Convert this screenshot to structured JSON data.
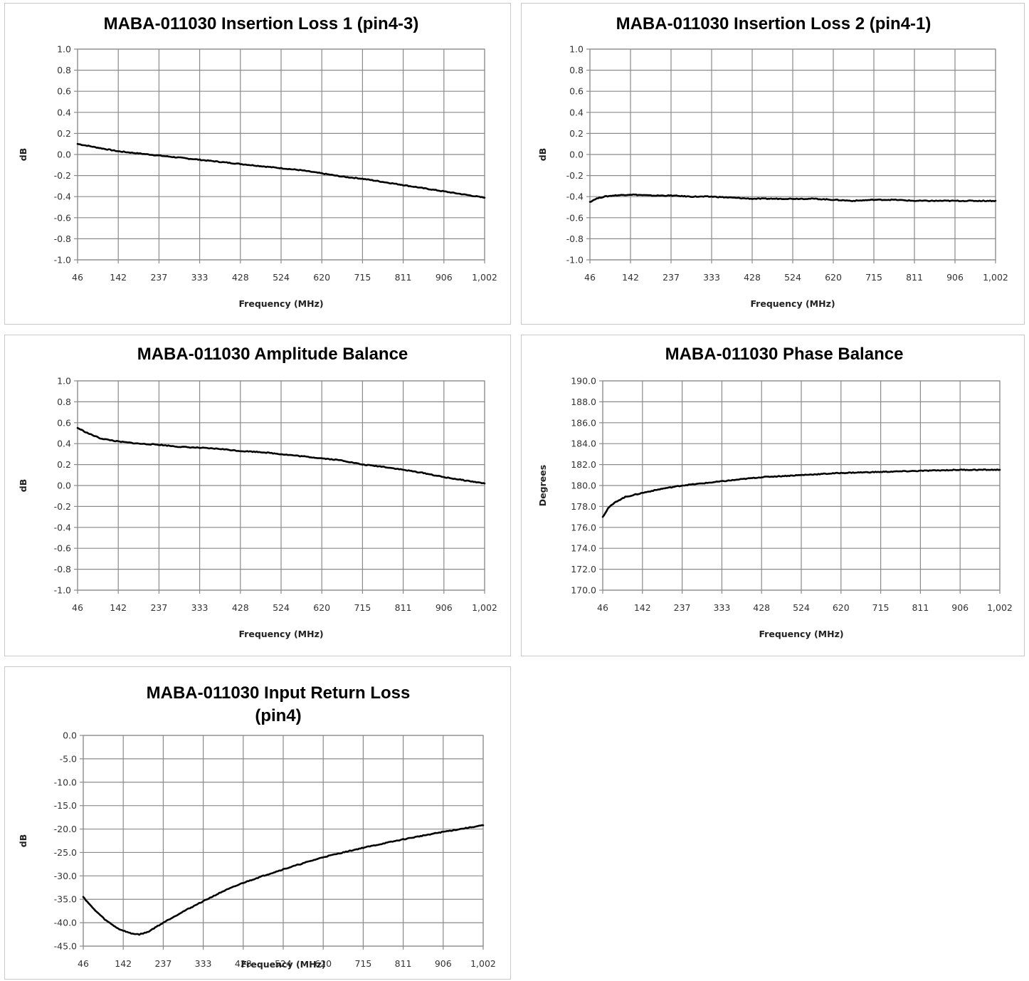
{
  "chart_data": [
    {
      "type": "line",
      "title": "MABA-011030 Insertion Loss 1 (pin4-3)",
      "xlabel": "Frequency (MHz)",
      "ylabel": "dB",
      "xlim": [
        46,
        1002
      ],
      "ylim": [
        -1.0,
        1.0
      ],
      "x_ticks": [
        "46",
        "142",
        "237",
        "333",
        "428",
        "524",
        "620",
        "715",
        "811",
        "906",
        "1,002"
      ],
      "y_ticks": [
        "1.0",
        "0.8",
        "0.6",
        "0.4",
        "0.2",
        "0.0",
        "-0.2",
        "-0.4",
        "-0.6",
        "-0.8",
        "-1.0"
      ],
      "grid": true,
      "series": [
        {
          "color": "#000000",
          "x": [
            46,
            100,
            142,
            190,
            237,
            285,
            333,
            380,
            428,
            476,
            524,
            572,
            620,
            667,
            715,
            763,
            811,
            858,
            906,
            954,
            1002
          ],
          "y": [
            0.1,
            0.06,
            0.03,
            0.01,
            -0.01,
            -0.03,
            -0.05,
            -0.07,
            -0.09,
            -0.11,
            -0.13,
            -0.15,
            -0.18,
            -0.21,
            -0.23,
            -0.26,
            -0.29,
            -0.32,
            -0.35,
            -0.38,
            -0.41
          ]
        }
      ]
    },
    {
      "type": "line",
      "title": "MABA-011030 Insertion Loss 2 (pin4-1)",
      "xlabel": "Frequency (MHz)",
      "ylabel": "dB",
      "xlim": [
        46,
        1002
      ],
      "ylim": [
        -1.0,
        1.0
      ],
      "x_ticks": [
        "46",
        "142",
        "237",
        "333",
        "428",
        "524",
        "620",
        "715",
        "811",
        "906",
        "1,002"
      ],
      "y_ticks": [
        "1.0",
        "0.8",
        "0.6",
        "0.4",
        "0.2",
        "0.0",
        "-0.2",
        "-0.4",
        "-0.6",
        "-0.8",
        "-1.0"
      ],
      "grid": true,
      "series": [
        {
          "color": "#000000",
          "x": [
            46,
            60,
            80,
            100,
            142,
            190,
            237,
            285,
            333,
            380,
            428,
            476,
            524,
            572,
            620,
            667,
            715,
            763,
            811,
            858,
            906,
            954,
            1002
          ],
          "y": [
            -0.45,
            -0.42,
            -0.4,
            -0.39,
            -0.38,
            -0.39,
            -0.39,
            -0.4,
            -0.4,
            -0.41,
            -0.42,
            -0.42,
            -0.42,
            -0.42,
            -0.43,
            -0.44,
            -0.43,
            -0.43,
            -0.44,
            -0.44,
            -0.44,
            -0.44,
            -0.44
          ]
        }
      ]
    },
    {
      "type": "line",
      "title": "MABA-011030 Amplitude Balance",
      "xlabel": "Frequency (MHz)",
      "ylabel": "dB",
      "xlim": [
        46,
        1002
      ],
      "ylim": [
        -1.0,
        1.0
      ],
      "x_ticks": [
        "46",
        "142",
        "237",
        "333",
        "428",
        "524",
        "620",
        "715",
        "811",
        "906",
        "1,002"
      ],
      "y_ticks": [
        "1.0",
        "0.8",
        "0.6",
        "0.4",
        "0.2",
        "0.0",
        "-0.2",
        "-0.4",
        "-0.6",
        "-0.8",
        "-1.0"
      ],
      "grid": true,
      "series": [
        {
          "color": "#000000",
          "x": [
            46,
            70,
            100,
            142,
            190,
            237,
            285,
            333,
            380,
            428,
            476,
            524,
            572,
            620,
            667,
            715,
            763,
            811,
            858,
            906,
            954,
            1002
          ],
          "y": [
            0.55,
            0.5,
            0.45,
            0.42,
            0.4,
            0.39,
            0.37,
            0.36,
            0.35,
            0.33,
            0.32,
            0.3,
            0.28,
            0.26,
            0.24,
            0.2,
            0.18,
            0.15,
            0.12,
            0.08,
            0.05,
            0.02
          ]
        }
      ]
    },
    {
      "type": "line",
      "title": "MABA-011030 Phase Balance",
      "xlabel": "Frequency (MHz)",
      "ylabel": "Degrees",
      "xlim": [
        46,
        1002
      ],
      "ylim": [
        170.0,
        190.0
      ],
      "x_ticks": [
        "46",
        "142",
        "237",
        "333",
        "428",
        "524",
        "620",
        "715",
        "811",
        "906",
        "1,002"
      ],
      "y_ticks": [
        "190.0",
        "188.0",
        "186.0",
        "184.0",
        "182.0",
        "180.0",
        "178.0",
        "176.0",
        "174.0",
        "172.0",
        "170.0"
      ],
      "grid": true,
      "series": [
        {
          "color": "#000000",
          "x": [
            46,
            60,
            80,
            100,
            142,
            190,
            237,
            285,
            333,
            380,
            428,
            476,
            524,
            572,
            620,
            667,
            715,
            763,
            811,
            858,
            906,
            954,
            1002
          ],
          "y": [
            177.0,
            177.9,
            178.5,
            178.9,
            179.3,
            179.7,
            180.0,
            180.2,
            180.4,
            180.6,
            180.8,
            180.9,
            181.0,
            181.1,
            181.2,
            181.25,
            181.3,
            181.35,
            181.4,
            181.45,
            181.5,
            181.5,
            181.5
          ]
        }
      ]
    },
    {
      "type": "line",
      "title": "MABA-011030 Input Return Loss (pin4)",
      "title_lines": [
        "MABA-011030 Input Return Loss",
        "(pin4)"
      ],
      "xlabel": "Frequency (MHz)",
      "ylabel": "dB",
      "xlim": [
        46,
        1002
      ],
      "ylim": [
        -45.0,
        0.0
      ],
      "x_ticks": [
        "46",
        "142",
        "237",
        "333",
        "428",
        "524",
        "620",
        "715",
        "811",
        "906",
        "1,002"
      ],
      "y_ticks": [
        "0.0",
        "-5.0",
        "-10.0",
        "-15.0",
        "-20.0",
        "-25.0",
        "-30.0",
        "-35.0",
        "-40.0",
        "-45.0"
      ],
      "grid": true,
      "series": [
        {
          "color": "#000000",
          "x": [
            46,
            70,
            100,
            130,
            160,
            180,
            200,
            237,
            285,
            333,
            380,
            428,
            476,
            524,
            572,
            620,
            667,
            715,
            763,
            811,
            858,
            906,
            954,
            1002
          ],
          "y": [
            -34.5,
            -37.0,
            -39.5,
            -41.3,
            -42.3,
            -42.5,
            -42.0,
            -40.0,
            -37.6,
            -35.4,
            -33.3,
            -31.5,
            -30.0,
            -28.6,
            -27.3,
            -26.0,
            -25.0,
            -24.0,
            -23.1,
            -22.2,
            -21.4,
            -20.6,
            -19.9,
            -19.2
          ]
        }
      ]
    }
  ]
}
